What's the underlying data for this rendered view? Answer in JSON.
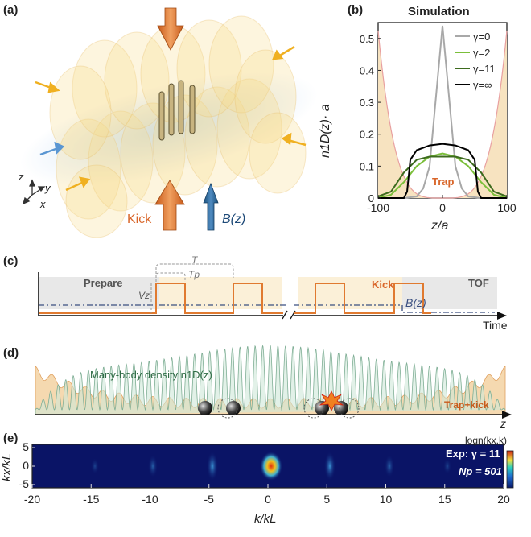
{
  "panels": {
    "a": {
      "label": "(a)",
      "axes": {
        "z": "z",
        "y": "y",
        "x": "x"
      },
      "kick_label": "Kick",
      "b_label": "B(z)"
    },
    "b": {
      "label": "(b)",
      "title": "Simulation",
      "ylabel": "n1D(z)· a",
      "xlabel": "z/a",
      "trap_label": "Trap",
      "legend": [
        "γ=0",
        "γ=2",
        "γ=11",
        "γ=∞"
      ],
      "colors": {
        "g0": "#a8a8a8",
        "g2": "#7bbf3a",
        "g11": "#3d6b1e",
        "ginf": "#000000",
        "trap": "#e8a0a0",
        "trap_fill": "#f7e3c0"
      }
    },
    "c": {
      "label": "(c)",
      "prepare": "Prepare",
      "kick": "Kick",
      "tof": "TOF",
      "T": "T",
      "Tp": "Tp",
      "Vz": "Vz",
      "bz": "B(z)",
      "time": "Time"
    },
    "d": {
      "label": "(d)",
      "density_label": "Many-body density n1D(z)",
      "trap_kick": "Trap+kick",
      "z": "z"
    },
    "e": {
      "label": "(e)",
      "exp_label": "Exp: γ = 11",
      "np_label": "Np = 501",
      "colorbar_label": "logn(kx,k)",
      "ylabel": "kx/kL",
      "xlabel": "k/kL",
      "xticks": [
        "-20",
        "-15",
        "-10",
        "-5",
        "0",
        "5",
        "10",
        "15",
        "20"
      ],
      "yticks": [
        "5",
        "0",
        "-5"
      ]
    }
  },
  "chart_data": {
    "type": "line",
    "title": "Simulation",
    "xlabel": "z/a",
    "ylabel": "n1D(z)· a",
    "xlim": [
      -100,
      100
    ],
    "ylim": [
      0,
      0.55
    ],
    "xticks": [
      -100,
      0,
      100
    ],
    "yticks": [
      0,
      0.1,
      0.2,
      0.3,
      0.4,
      0.5
    ],
    "series": [
      {
        "name": "γ=0",
        "x": [
          -100,
          -60,
          -40,
          -30,
          -20,
          -10,
          0,
          10,
          20,
          30,
          40,
          60,
          100
        ],
        "y": [
          0,
          0,
          0.005,
          0.03,
          0.1,
          0.32,
          0.54,
          0.32,
          0.1,
          0.03,
          0.005,
          0,
          0
        ]
      },
      {
        "name": "γ=2",
        "x": [
          -100,
          -80,
          -60,
          -40,
          -20,
          0,
          20,
          40,
          60,
          80,
          100
        ],
        "y": [
          0,
          0.01,
          0.05,
          0.1,
          0.13,
          0.14,
          0.13,
          0.1,
          0.05,
          0.01,
          0
        ]
      },
      {
        "name": "γ=11",
        "x": [
          -100,
          -80,
          -60,
          -40,
          -20,
          0,
          20,
          40,
          60,
          80,
          100
        ],
        "y": [
          0.005,
          0.02,
          0.08,
          0.12,
          0.13,
          0.13,
          0.13,
          0.12,
          0.08,
          0.02,
          0.005
        ]
      },
      {
        "name": "γ=∞",
        "x": [
          -100,
          -60,
          -55,
          -50,
          -40,
          -20,
          0,
          20,
          40,
          50,
          55,
          60,
          100
        ],
        "y": [
          0,
          0,
          0.02,
          0.12,
          0.15,
          0.165,
          0.17,
          0.165,
          0.15,
          0.12,
          0.02,
          0,
          0
        ]
      }
    ]
  }
}
